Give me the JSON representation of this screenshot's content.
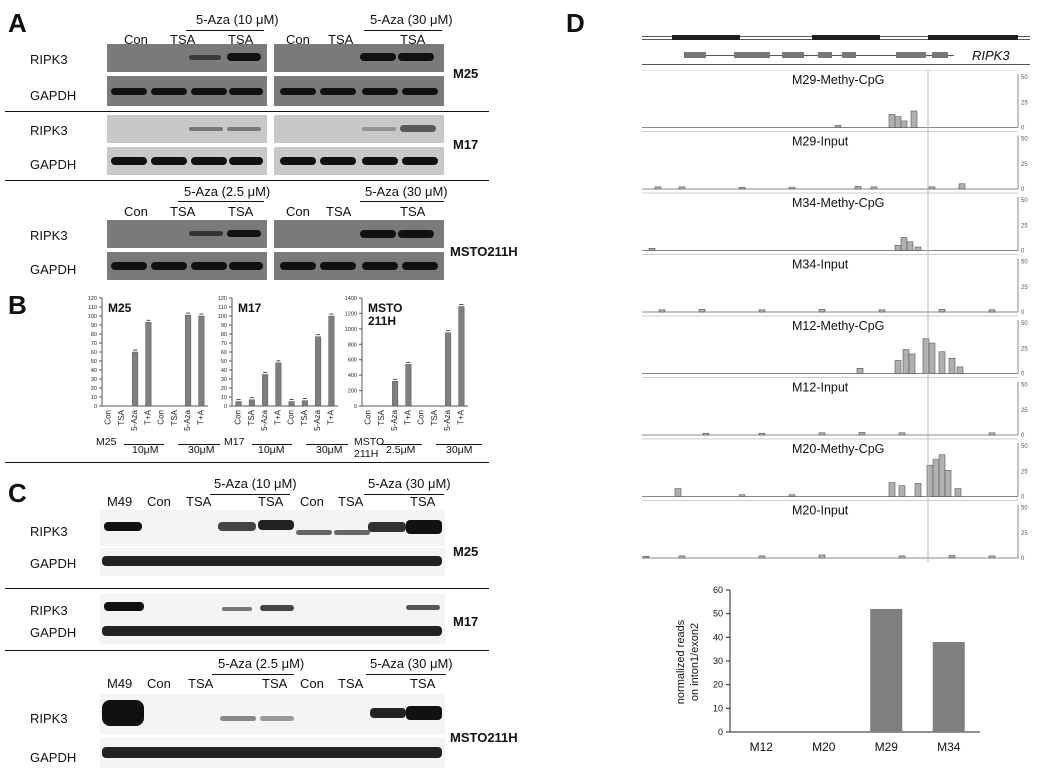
{
  "panels": {
    "A": "A",
    "B": "B",
    "C": "C",
    "D": "D"
  },
  "conditions": {
    "con": "Con",
    "tsa": "TSA",
    "aza": "5-Aza",
    "ta": "T+A"
  },
  "doses": {
    "aza10": "5-Aza (10 μM)",
    "aza30": "5-Aza (30 μM)",
    "aza25": "5-Aza (2.5 μM)",
    "um10": "10μM",
    "um30": "30μM",
    "um25": "2.5μM"
  },
  "genes": {
    "ripk3": "RIPK3",
    "gapdh": "GAPDH",
    "ripk3_italic": "RIPK3"
  },
  "cells": {
    "m25": "M25",
    "m17": "M17",
    "msto": "MSTO211H",
    "msto_a": "MSTO",
    "msto_b": "211H",
    "m49": "M49"
  },
  "chart_data": [
    {
      "type": "bar",
      "panel": "B",
      "title": "M25",
      "categories": [
        "Con",
        "TSA",
        "5-Aza",
        "T+A",
        "Con",
        "TSA",
        "5-Aza",
        "T+A"
      ],
      "values": [
        0,
        0,
        60,
        93,
        0,
        0,
        101,
        100
      ],
      "ylim": [
        0,
        120
      ],
      "yticks": [
        0,
        10,
        20,
        30,
        40,
        50,
        60,
        70,
        80,
        90,
        100,
        110,
        120
      ]
    },
    {
      "type": "bar",
      "panel": "B",
      "title": "M17",
      "categories": [
        "Con",
        "TSA",
        "5-Aza",
        "T+A",
        "Con",
        "TSA",
        "5-Aza",
        "T+A"
      ],
      "values": [
        5,
        7,
        35,
        48,
        5,
        6,
        77,
        100
      ],
      "ylim": [
        0,
        120
      ],
      "yticks": [
        0,
        10,
        20,
        30,
        40,
        50,
        60,
        70,
        80,
        90,
        100,
        110,
        120
      ]
    },
    {
      "type": "bar",
      "panel": "B",
      "title": "MSTO 211H",
      "categories": [
        "Con",
        "TSA",
        "5-Aza",
        "T+A",
        "Con",
        "TSA",
        "5-Aza",
        "T+A"
      ],
      "values": [
        0,
        0,
        320,
        540,
        0,
        0,
        950,
        1290
      ],
      "ylim": [
        0,
        1400
      ],
      "yticks": [
        0,
        200,
        400,
        600,
        800,
        1000,
        1200,
        1400
      ]
    },
    {
      "type": "bar",
      "panel": "D",
      "categories": [
        "M12",
        "M20",
        "M29",
        "M34"
      ],
      "values": [
        0,
        0,
        52,
        38
      ],
      "ylabel": "normalized reads on inton1/exon2",
      "ylim": [
        0,
        60
      ],
      "yticks": [
        0,
        10,
        20,
        30,
        40,
        50,
        60
      ]
    }
  ],
  "tracks": {
    "scale_top": "50",
    "scale_mid": "25",
    "scale_zero": "0",
    "items": [
      {
        "label": "M29-Methy-CpG"
      },
      {
        "label": "M29-Input"
      },
      {
        "label": "M34-Methy-CpG"
      },
      {
        "label": "M34-Input"
      },
      {
        "label": "M12-Methy-CpG"
      },
      {
        "label": "M12-Input"
      },
      {
        "label": "M20-Methy-CpG"
      },
      {
        "label": "M20-Input"
      }
    ]
  },
  "colors": {
    "bar": "#7f7f7f",
    "track": "#b0b0b0",
    "blot_bg": "#7a7a7a"
  }
}
